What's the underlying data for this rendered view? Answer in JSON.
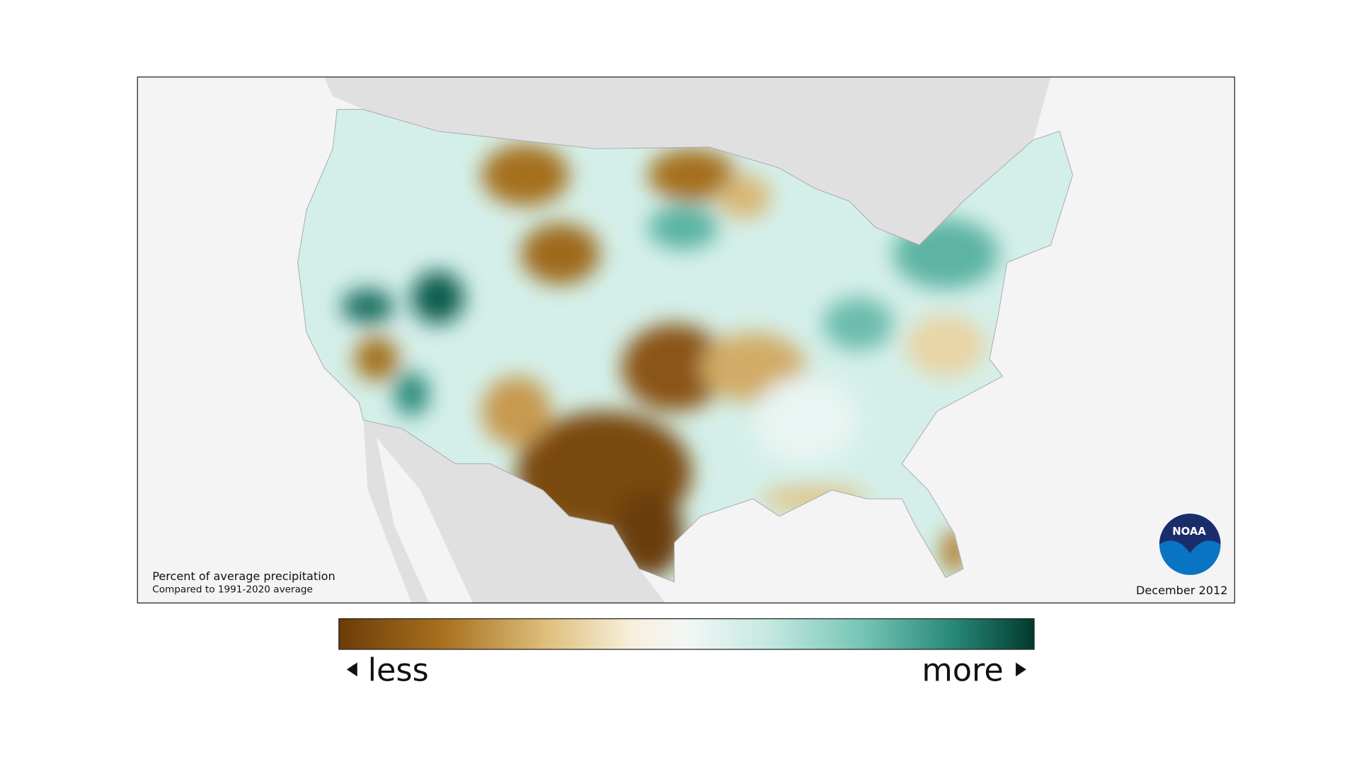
{
  "map": {
    "title": "Percent of average precipitation",
    "subtitle": "Compared to 1991-2020 average",
    "date": "December 2012",
    "logo": "NOAA",
    "legend": {
      "low_label": "less",
      "high_label": "more"
    }
  }
}
